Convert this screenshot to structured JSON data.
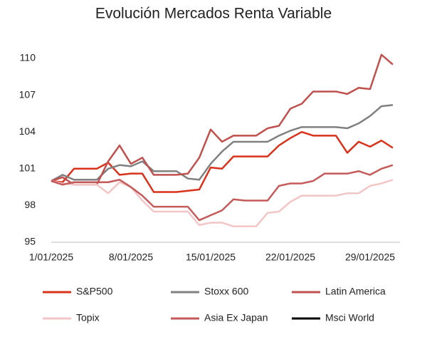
{
  "chart_data": {
    "type": "line",
    "title": "Evolución Mercados Renta Variable",
    "categories": [
      "1/01/2025",
      null,
      null,
      null,
      null,
      null,
      null,
      "8/01/2025",
      null,
      null,
      null,
      null,
      null,
      null,
      "15/01/2025",
      null,
      null,
      null,
      null,
      null,
      null,
      "22/01/2025",
      null,
      null,
      null,
      null,
      null,
      null,
      "29/01/2025",
      null,
      null
    ],
    "series": [
      {
        "name": "S&P500",
        "color": "#d9321a",
        "values": [
          100,
          99.9,
          101,
          101,
          101,
          101.5,
          100.5,
          100.6,
          100.6,
          99.1,
          99.1,
          99.1,
          99.2,
          99.3,
          101.1,
          101,
          102,
          102,
          102,
          102,
          102.9,
          103.5,
          104,
          103.7,
          103.7,
          103.7,
          102.3,
          103.2,
          102.8,
          103.3,
          102.7
        ]
      },
      {
        "name": "Stoxx 600",
        "color": "#808080",
        "values": [
          100,
          100.5,
          100.1,
          100.1,
          100.1,
          101,
          101.3,
          101.2,
          101.6,
          100.8,
          100.8,
          100.8,
          100.2,
          100.1,
          101.4,
          102.4,
          103.2,
          103.2,
          103.2,
          103.2,
          103.7,
          104.1,
          104.4,
          104.4,
          104.4,
          104.4,
          104.3,
          104.7,
          105.3,
          106.1,
          106.2
        ]
      },
      {
        "name": "Latin America",
        "color": "#c0504d",
        "values": [
          100,
          100.3,
          99.7,
          99.7,
          99.7,
          101.6,
          102.9,
          101.4,
          101.9,
          100.5,
          100.5,
          100.5,
          100.6,
          101.9,
          104.2,
          103.2,
          103.7,
          103.7,
          103.7,
          104.3,
          104.5,
          105.9,
          106.3,
          107.3,
          107.3,
          107.3,
          107.1,
          107.6,
          107.5,
          110.3,
          109.5
        ]
      },
      {
        "name": "Topix",
        "color": "#f2c6c6",
        "values": [
          100,
          99.8,
          99.7,
          99.7,
          99.7,
          99,
          99.9,
          99.5,
          98.4,
          97.5,
          97.5,
          97.5,
          97.5,
          96.4,
          96.6,
          96.6,
          96.3,
          96.3,
          96.3,
          97.4,
          97.5,
          98.3,
          98.8,
          98.8,
          98.8,
          98.8,
          99,
          99,
          99.6,
          99.8,
          100.1
        ]
      },
      {
        "name": "Asia Ex Japan",
        "color": "#c55a5a",
        "values": [
          100,
          99.7,
          99.9,
          99.9,
          99.9,
          99.9,
          100.1,
          99.5,
          98.8,
          97.9,
          97.9,
          97.9,
          97.9,
          96.8,
          97.2,
          97.6,
          98.5,
          98.4,
          98.4,
          98.4,
          99.6,
          99.8,
          99.8,
          100,
          100.6,
          100.6,
          100.6,
          100.8,
          100.5,
          101,
          101.3
        ]
      },
      {
        "name": "Msci World",
        "color": "#000000",
        "values": [
          null,
          null,
          null,
          null,
          null,
          null,
          null,
          null,
          null,
          null,
          null,
          null,
          null,
          null,
          null,
          null,
          null,
          null,
          null,
          null,
          null,
          null,
          null,
          null,
          null,
          null,
          null,
          null,
          null,
          null,
          null
        ]
      }
    ],
    "ylim": [
      95,
      111
    ],
    "yticks": [
      95,
      98,
      101,
      104,
      107,
      110
    ],
    "grid": false
  }
}
